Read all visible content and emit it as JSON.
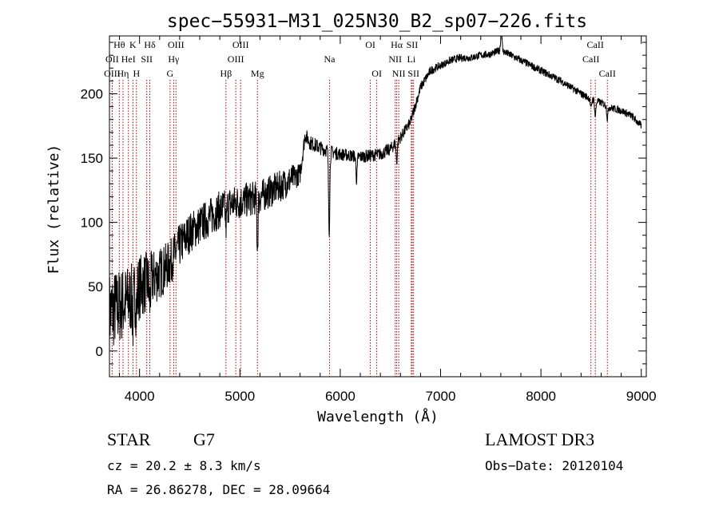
{
  "chart_data": {
    "type": "line",
    "title": "spec−55931−M31_025N30_B2_sp07−226.fits",
    "xlabel": "Wavelength (Å)",
    "ylabel": "Flux (relative)",
    "xlim": [
      3700,
      9050
    ],
    "ylim": [
      -20,
      245
    ],
    "x_ticks": [
      4000,
      5000,
      6000,
      7000,
      8000,
      9000
    ],
    "y_ticks": [
      0,
      50,
      100,
      150,
      200
    ],
    "grid": false,
    "series": [
      {
        "name": "flux",
        "color": "#000000",
        "anchors": [
          [
            3700,
            30
          ],
          [
            3800,
            35
          ],
          [
            3900,
            40
          ],
          [
            4000,
            50
          ],
          [
            4100,
            55
          ],
          [
            4200,
            60
          ],
          [
            4300,
            68
          ],
          [
            4400,
            82
          ],
          [
            4500,
            92
          ],
          [
            4600,
            98
          ],
          [
            4700,
            104
          ],
          [
            4800,
            110
          ],
          [
            4900,
            114
          ],
          [
            5000,
            116
          ],
          [
            5100,
            118
          ],
          [
            5200,
            120
          ],
          [
            5300,
            124
          ],
          [
            5400,
            128
          ],
          [
            5500,
            133
          ],
          [
            5600,
            138
          ],
          [
            5650,
            168
          ],
          [
            5700,
            162
          ],
          [
            5800,
            158
          ],
          [
            5900,
            155
          ],
          [
            6000,
            153
          ],
          [
            6100,
            152
          ],
          [
            6200,
            151
          ],
          [
            6300,
            152
          ],
          [
            6400,
            153
          ],
          [
            6500,
            157
          ],
          [
            6600,
            166
          ],
          [
            6650,
            172
          ],
          [
            6700,
            178
          ],
          [
            6800,
            205
          ],
          [
            6900,
            218
          ],
          [
            7000,
            222
          ],
          [
            7100,
            226
          ],
          [
            7200,
            228
          ],
          [
            7300,
            228
          ],
          [
            7400,
            230
          ],
          [
            7500,
            231
          ],
          [
            7600,
            234
          ],
          [
            7700,
            230
          ],
          [
            7800,
            226
          ],
          [
            7900,
            222
          ],
          [
            8000,
            218
          ],
          [
            8100,
            214
          ],
          [
            8200,
            210
          ],
          [
            8300,
            205
          ],
          [
            8400,
            200
          ],
          [
            8500,
            196
          ],
          [
            8600,
            193
          ],
          [
            8700,
            189
          ],
          [
            8800,
            187
          ],
          [
            8900,
            183
          ],
          [
            9000,
            175
          ]
        ],
        "noise_amplitude": [
          [
            3700,
            32
          ],
          [
            4000,
            26
          ],
          [
            4300,
            18
          ],
          [
            4500,
            16
          ],
          [
            5000,
            14
          ],
          [
            5500,
            12
          ],
          [
            5650,
            6
          ],
          [
            6000,
            5
          ],
          [
            6500,
            5
          ],
          [
            6800,
            4
          ],
          [
            7000,
            3
          ],
          [
            8000,
            3
          ],
          [
            9000,
            3
          ]
        ],
        "dips": [
          [
            3934,
            -20
          ],
          [
            3969,
            -15
          ],
          [
            4102,
            -18
          ],
          [
            4862,
            -15
          ],
          [
            5175,
            -38
          ],
          [
            5890,
            -62
          ],
          [
            6163,
            -18
          ],
          [
            6563,
            -15
          ],
          [
            7605,
            18
          ],
          [
            8498,
            -8
          ],
          [
            8542,
            -12
          ],
          [
            8662,
            -10
          ]
        ]
      }
    ],
    "spectral_lines": [
      {
        "name": "Hθ",
        "wl": 3798,
        "row": 0
      },
      {
        "name": "OII",
        "wl": 3727,
        "row": 1
      },
      {
        "name": "OIII",
        "wl": 3727,
        "row": 2
      },
      {
        "name": "Hη",
        "wl": 3835,
        "row": 2
      },
      {
        "name": "HeI",
        "wl": 3889,
        "row": 1
      },
      {
        "name": "K",
        "wl": 3934,
        "row": 0
      },
      {
        "name": "H",
        "wl": 3969,
        "row": 2
      },
      {
        "name": "SII",
        "wl": 4072,
        "row": 1
      },
      {
        "name": "Hδ",
        "wl": 4102,
        "row": 0
      },
      {
        "name": "OIII",
        "wl": 4363,
        "row": 0
      },
      {
        "name": "Hγ",
        "wl": 4340,
        "row": 1
      },
      {
        "name": "G",
        "wl": 4304,
        "row": 2
      },
      {
        "name": "Hβ",
        "wl": 4861,
        "row": 2
      },
      {
        "name": "OIII",
        "wl": 5007,
        "row": 0
      },
      {
        "name": "OIII",
        "wl": 4959,
        "row": 1
      },
      {
        "name": "Mg",
        "wl": 5175,
        "row": 2
      },
      {
        "name": "Na",
        "wl": 5893,
        "row": 1
      },
      {
        "name": "OI",
        "wl": 6300,
        "row": 0
      },
      {
        "name": "OI",
        "wl": 6364,
        "row": 2
      },
      {
        "name": "Hα",
        "wl": 6563,
        "row": 0
      },
      {
        "name": "NII",
        "wl": 6548,
        "row": 1
      },
      {
        "name": "NII",
        "wl": 6583,
        "row": 2
      },
      {
        "name": "SII",
        "wl": 6717,
        "row": 0
      },
      {
        "name": "Li",
        "wl": 6708,
        "row": 1
      },
      {
        "name": "SII",
        "wl": 6731,
        "row": 2
      },
      {
        "name": "CaII",
        "wl": 8542,
        "row": 0
      },
      {
        "name": "CaII",
        "wl": 8498,
        "row": 1
      },
      {
        "name": "CaII",
        "wl": 8662,
        "row": 2
      }
    ]
  },
  "info": {
    "class": "STAR",
    "subclass": "G7",
    "release": "LAMOST DR3",
    "redshift": "cz = 20.2 ± 8.3 km/s",
    "obs_date": "Obs−Date: 20120104",
    "coords": "RA =  26.86278, DEC =  28.09664"
  }
}
